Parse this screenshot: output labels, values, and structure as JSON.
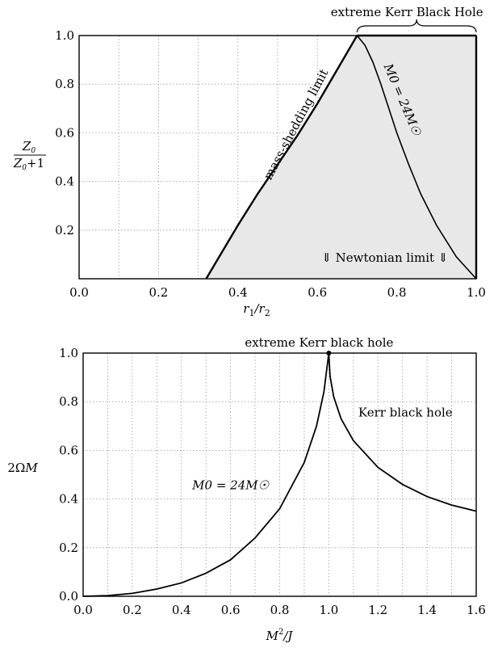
{
  "chart_data": [
    {
      "type": "line",
      "xlabel": "r1/r2",
      "ylabel": "Z0/(Z0+1)",
      "xlim": [
        0.0,
        1.0
      ],
      "ylim": [
        0.0,
        1.0
      ],
      "grid": true,
      "xticks": [
        "0.0",
        "0.2",
        "0.4",
        "0.6",
        "0.8",
        "1.0"
      ],
      "yticks": [
        "0.2",
        "0.4",
        "0.6",
        "0.8",
        "1.0"
      ],
      "series": [
        {
          "name": "mass-shedding limit",
          "x": [
            0.32,
            0.36,
            0.4,
            0.45,
            0.5,
            0.55,
            0.6,
            0.65,
            0.7
          ],
          "y": [
            0.0,
            0.11,
            0.22,
            0.35,
            0.47,
            0.59,
            0.72,
            0.86,
            1.0
          ]
        },
        {
          "name": "M0 = 24M☉",
          "x": [
            0.7,
            0.72,
            0.74,
            0.76,
            0.78,
            0.8,
            0.83,
            0.86,
            0.9,
            0.95,
            1.0
          ],
          "y": [
            1.0,
            0.96,
            0.89,
            0.8,
            0.7,
            0.6,
            0.47,
            0.35,
            0.22,
            0.09,
            0.0
          ]
        }
      ],
      "annotations": [
        {
          "text": "extreme Kerr Black Hole"
        },
        {
          "text": "mass-shedding limit"
        },
        {
          "text": "⇓ Newtonian limit ⇓"
        }
      ]
    },
    {
      "type": "line",
      "xlabel": "M²/J",
      "ylabel": "2ΩM",
      "xlim": [
        0.0,
        1.6
      ],
      "ylim": [
        0.0,
        1.0
      ],
      "grid": true,
      "xticks": [
        "0.0",
        "0.2",
        "0.4",
        "0.6",
        "0.8",
        "1.0",
        "1.2",
        "1.4",
        "1.6"
      ],
      "yticks": [
        "0.0",
        "0.2",
        "0.4",
        "0.6",
        "0.8",
        "1.0"
      ],
      "series": [
        {
          "name": "M0 = 24M☉",
          "x": [
            0.0,
            0.1,
            0.2,
            0.3,
            0.4,
            0.5,
            0.6,
            0.7,
            0.8,
            0.9,
            0.95,
            0.98,
            1.0
          ],
          "y": [
            0.0,
            0.003,
            0.012,
            0.03,
            0.055,
            0.095,
            0.15,
            0.24,
            0.36,
            0.55,
            0.7,
            0.84,
            1.0
          ]
        },
        {
          "name": "Kerr black hole",
          "x": [
            1.0,
            1.005,
            1.02,
            1.05,
            1.1,
            1.2,
            1.3,
            1.4,
            1.5,
            1.6
          ],
          "y": [
            1.0,
            0.905,
            0.82,
            0.73,
            0.64,
            0.53,
            0.46,
            0.41,
            0.375,
            0.35
          ]
        }
      ],
      "points": [
        {
          "x": 1.0,
          "y": 1.0
        }
      ],
      "annotations": [
        {
          "text": "extreme Kerr black hole"
        },
        {
          "text": "Kerr black hole"
        }
      ]
    }
  ]
}
